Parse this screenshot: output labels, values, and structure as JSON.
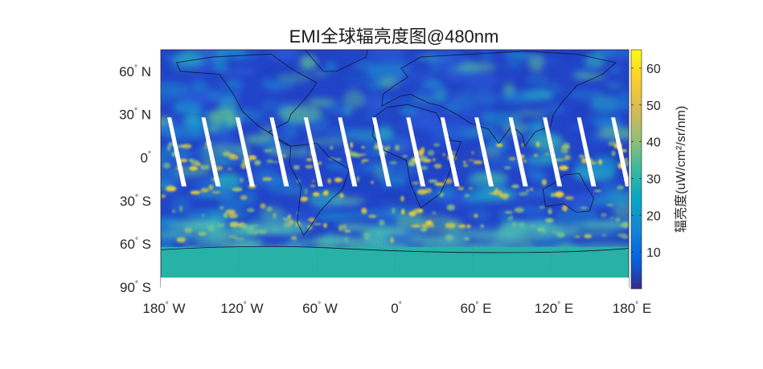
{
  "title": "EMI全球辐亮度图@480nm",
  "map": {
    "projection": "equirectangular",
    "lon_range": [
      -180,
      180
    ],
    "lat_range": [
      -90,
      75
    ],
    "lat_ticks": [
      {
        "value": 60,
        "deg": "60",
        "hemi": "N"
      },
      {
        "value": 30,
        "deg": "30",
        "hemi": "N"
      },
      {
        "value": 0,
        "deg": "0",
        "hemi": ""
      },
      {
        "value": -30,
        "deg": "30",
        "hemi": "S"
      },
      {
        "value": -60,
        "deg": "60",
        "hemi": "S"
      },
      {
        "value": -90,
        "deg": "90",
        "hemi": "S"
      }
    ],
    "lon_ticks": [
      {
        "value": -180,
        "deg": "180",
        "hemi": "W"
      },
      {
        "value": -120,
        "deg": "120",
        "hemi": "W"
      },
      {
        "value": -60,
        "deg": "60",
        "hemi": "W"
      },
      {
        "value": 0,
        "deg": "0",
        "hemi": ""
      },
      {
        "value": 60,
        "deg": "60",
        "hemi": "E"
      },
      {
        "value": 120,
        "deg": "120",
        "hemi": "E"
      },
      {
        "value": 180,
        "deg": "180",
        "hemi": "E"
      }
    ],
    "swath_gaps": 14,
    "colormap": "parula"
  },
  "colorbar": {
    "label": "辐亮度(uW/cm²/sr/nm)",
    "range": [
      0,
      65
    ],
    "ticks": [
      10,
      20,
      30,
      40,
      50,
      60
    ],
    "colors": [
      "#352a87",
      "#0363e1",
      "#1485d4",
      "#06a7c6",
      "#38b99e",
      "#92bf73",
      "#d9ba56",
      "#fcce2e",
      "#f9fb0e"
    ]
  },
  "colors": {
    "ocean_base": "#2244c8",
    "antarctica": "#26b2a6",
    "cloud_bright": "#f2d235",
    "coast": "#101030"
  }
}
